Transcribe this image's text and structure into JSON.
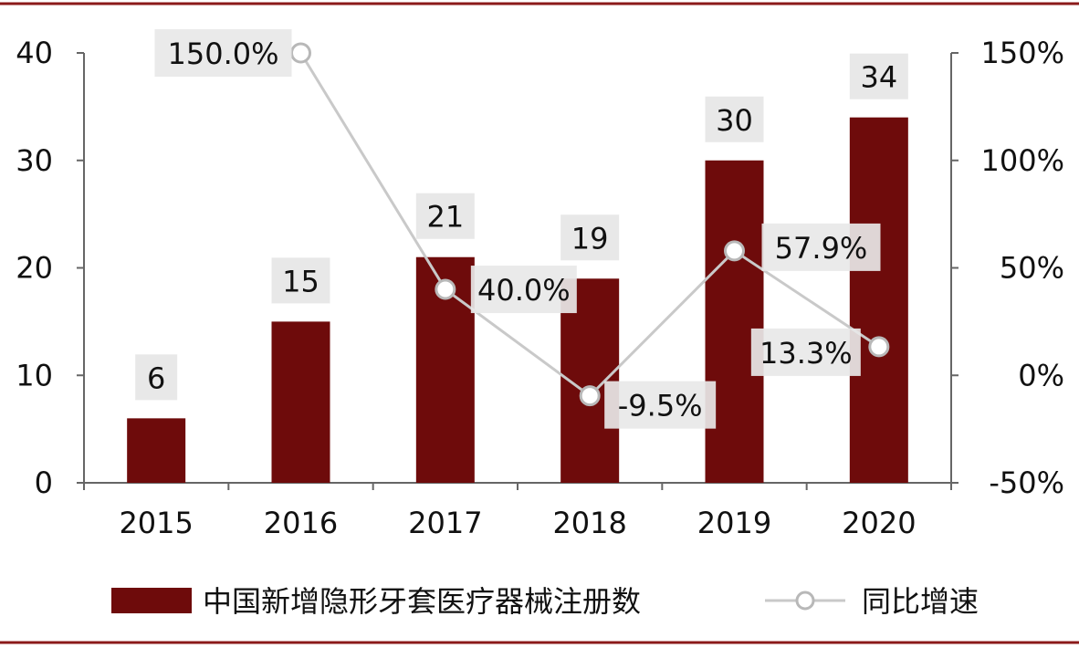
{
  "colors": {
    "bar": "#6e0b0b",
    "line": "#c9c9c9",
    "marker_fill": "#ffffff",
    "marker_stroke": "#b8b8b8",
    "label_bg": "#e8e8e8",
    "axis": "#666666",
    "border": "#8b1a1a"
  },
  "chart_data": {
    "type": "bar",
    "categories": [
      "2015",
      "2016",
      "2017",
      "2018",
      "2019",
      "2020"
    ],
    "series": [
      {
        "name": "中国新增隐形牙套医疗器械注册数",
        "type": "bar",
        "axis": "left",
        "values": [
          6,
          15,
          21,
          19,
          30,
          34
        ],
        "labels": [
          "6",
          "15",
          "21",
          "19",
          "30",
          "34"
        ]
      },
      {
        "name": "同比增速",
        "type": "line",
        "axis": "right",
        "x": [
          "2016",
          "2017",
          "2018",
          "2019",
          "2020"
        ],
        "values": [
          150.0,
          40.0,
          -9.5,
          57.9,
          13.3
        ],
        "labels": [
          "150.0%",
          "40.0%",
          "-9.5%",
          "57.9%",
          "13.3%"
        ]
      }
    ],
    "y_left": {
      "ticks": [
        "0",
        "10",
        "20",
        "30",
        "40"
      ],
      "ylim": [
        0,
        40
      ]
    },
    "y_right": {
      "ticks": [
        "-50%",
        "0%",
        "50%",
        "100%",
        "150%"
      ],
      "ylim": [
        -50,
        150
      ]
    },
    "legend": "bottom",
    "grid": false
  }
}
